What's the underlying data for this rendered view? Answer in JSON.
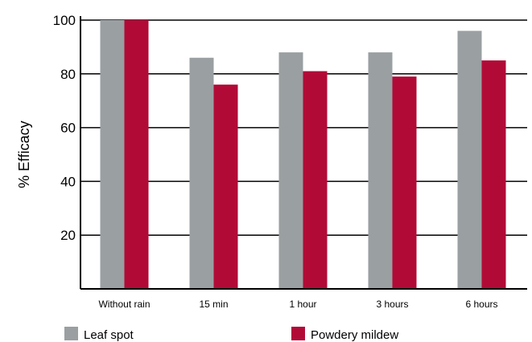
{
  "chart_data": {
    "type": "bar",
    "title": "",
    "xlabel": "",
    "ylabel": "% Efficacy",
    "ylim": [
      0,
      100
    ],
    "yticks": [
      20,
      40,
      60,
      80,
      100
    ],
    "grid": true,
    "legend_position": "bottom",
    "categories": [
      "Without rain",
      "15 min",
      "1 hour",
      "3 hours",
      "6 hours"
    ],
    "series": [
      {
        "name": "Leaf spot",
        "color": "#9a9fa1",
        "values": [
          100,
          86,
          88,
          88,
          96
        ]
      },
      {
        "name": "Powdery mildew",
        "color": "#b20a37",
        "values": [
          100,
          76,
          81,
          79,
          85
        ]
      }
    ]
  }
}
